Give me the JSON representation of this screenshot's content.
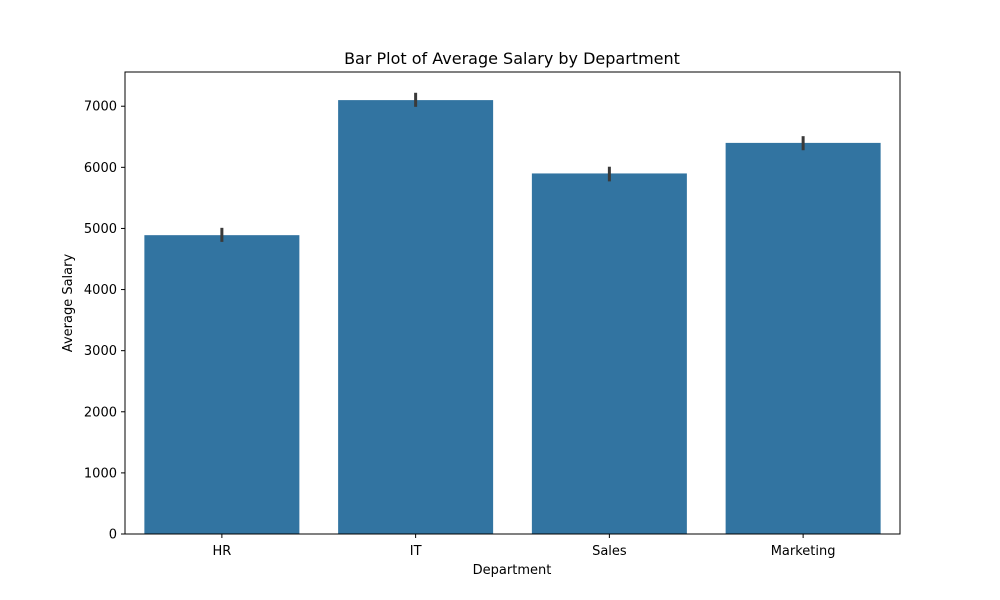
{
  "chart_data": {
    "type": "bar",
    "title": "Bar Plot of Average Salary by Department",
    "xlabel": "Department",
    "ylabel": "Average Salary",
    "categories": [
      "HR",
      "IT",
      "Sales",
      "Marketing"
    ],
    "values": [
      4890,
      7100,
      5900,
      6400
    ],
    "error_low": [
      4780,
      6990,
      5770,
      6280
    ],
    "error_high": [
      5010,
      7220,
      6010,
      6510
    ],
    "ylim": [
      0,
      7560
    ],
    "yticks": [
      0,
      1000,
      2000,
      3000,
      4000,
      5000,
      6000,
      7000
    ],
    "ytick_labels": [
      "0",
      "1000",
      "2000",
      "3000",
      "4000",
      "5000",
      "6000",
      "7000"
    ],
    "grid": false,
    "bar_color": "#3274a1",
    "error_color": "#3a3a3a"
  }
}
